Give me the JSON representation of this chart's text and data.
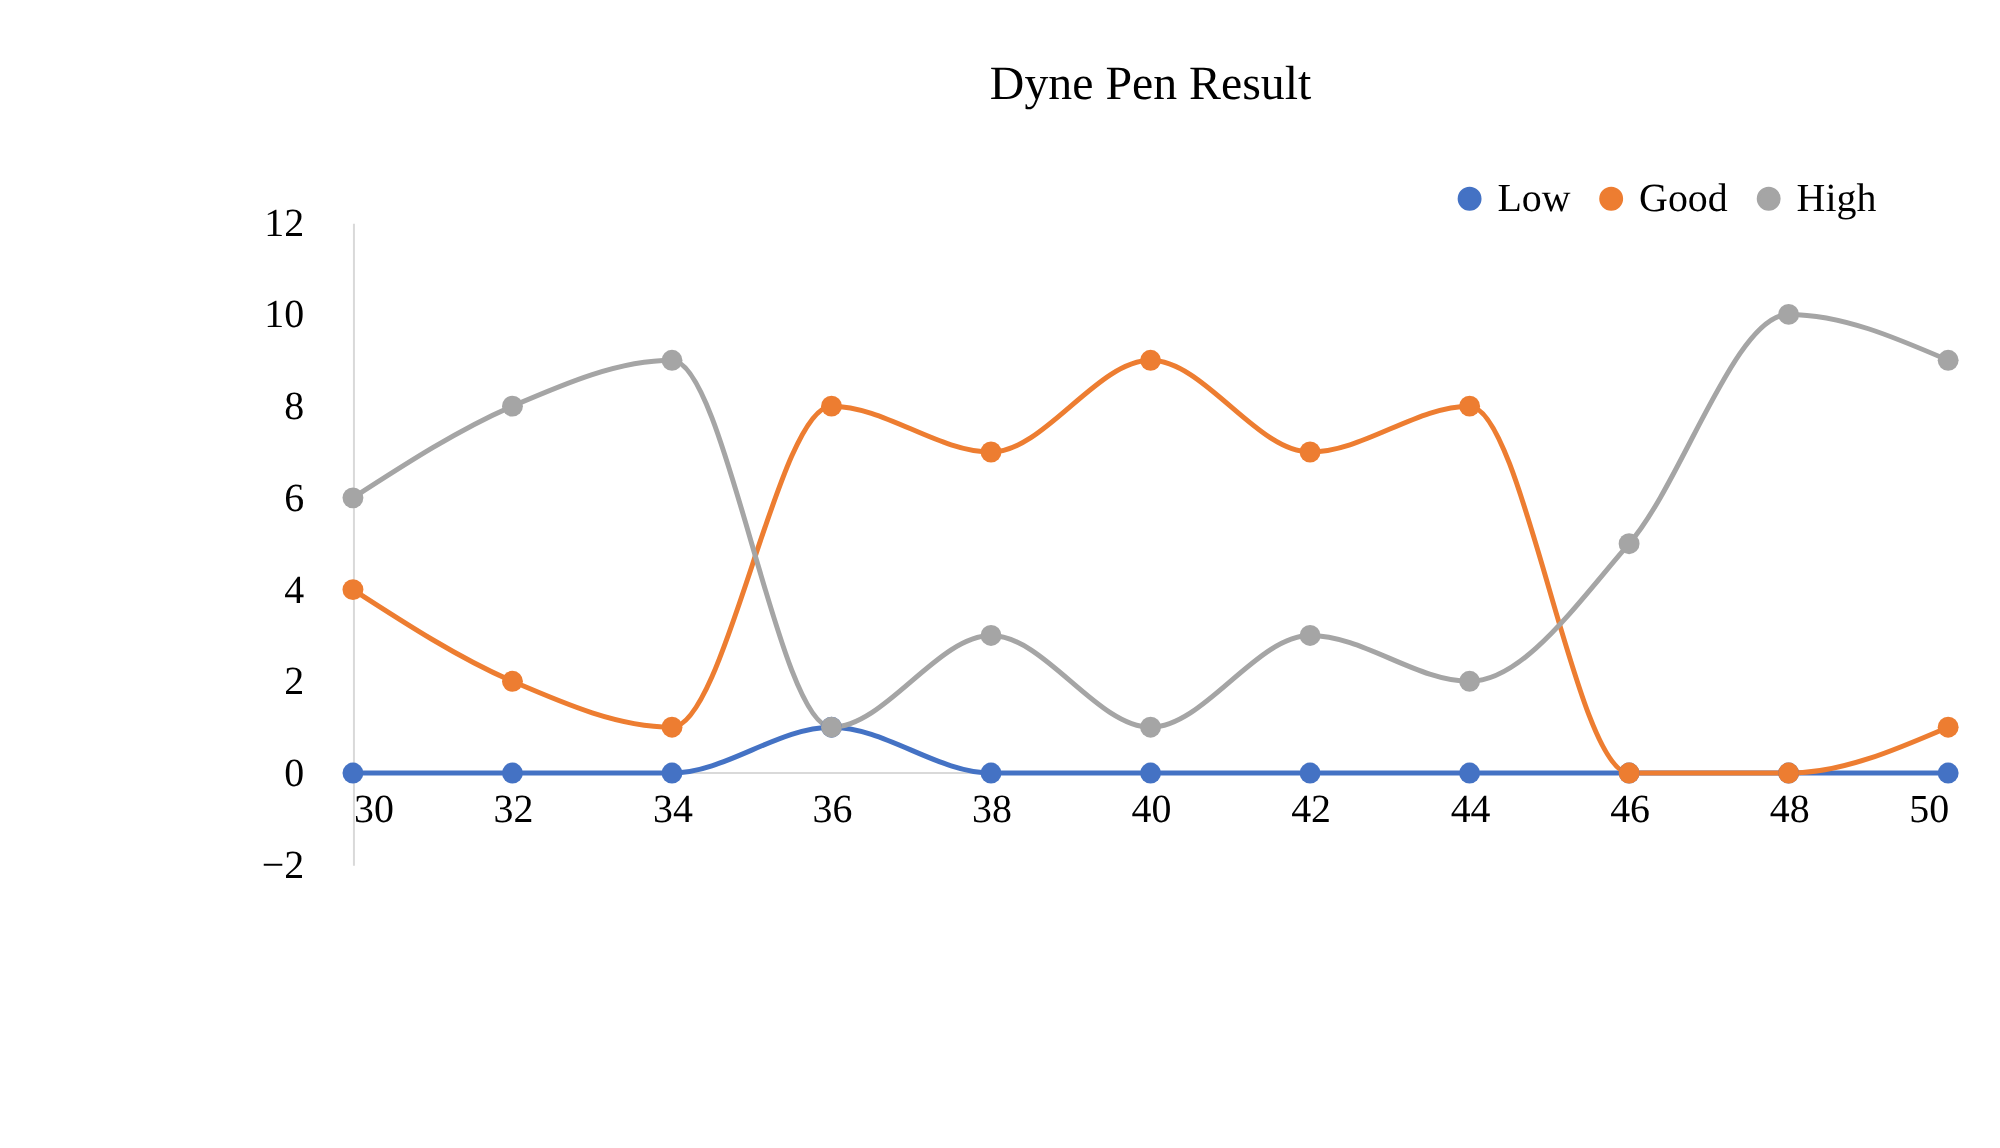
{
  "chart_data": {
    "type": "line",
    "title": "Dyne Pen Result",
    "x": [
      30,
      32,
      34,
      36,
      38,
      40,
      42,
      44,
      46,
      48,
      50
    ],
    "series": [
      {
        "name": "Low",
        "color": "#4472c4",
        "values": [
          0,
          0,
          0,
          1,
          0,
          0,
          0,
          0,
          0,
          0,
          0
        ]
      },
      {
        "name": "Good",
        "color": "#ed7d31",
        "values": [
          4,
          2,
          1,
          8,
          7,
          9,
          7,
          8,
          0,
          0,
          1
        ]
      },
      {
        "name": "High",
        "color": "#a5a5a5",
        "values": [
          6,
          8,
          9,
          1,
          3,
          1,
          3,
          2,
          5,
          10,
          9
        ]
      }
    ],
    "xlim": [
      30,
      50
    ],
    "xticks": [
      30,
      32,
      34,
      36,
      38,
      40,
      42,
      44,
      46,
      48,
      50
    ],
    "ylim": [
      -2,
      12
    ],
    "yticks": [
      -2,
      0,
      2,
      4,
      6,
      8,
      10,
      12
    ],
    "grid": false,
    "legend": "top right",
    "marker": "circle",
    "line_style": "solid"
  }
}
